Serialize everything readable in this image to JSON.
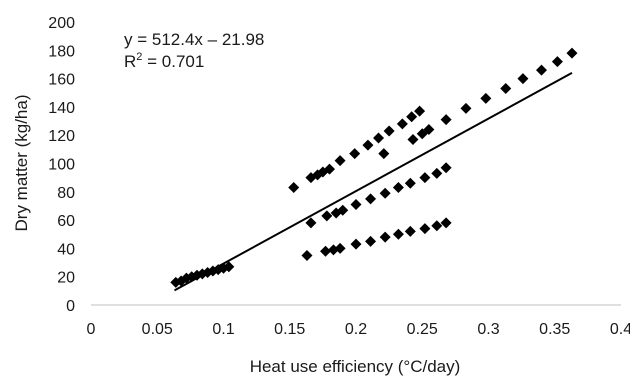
{
  "chart_data": {
    "type": "scatter",
    "title": "",
    "xlabel": "Heat use efficiency (°C/day)",
    "ylabel": "Dry matter (kg/ha)",
    "xlim": [
      0,
      0.4
    ],
    "ylim": [
      0,
      200
    ],
    "xticks": [
      "0",
      "0.05",
      "0.1",
      "0.15",
      "0.2",
      "0.25",
      "0.3",
      "0.35",
      "0.4"
    ],
    "yticks": [
      "0",
      "20",
      "40",
      "60",
      "80",
      "100",
      "120",
      "140",
      "160",
      "180",
      "200"
    ],
    "grid": false,
    "marker": "diamond",
    "marker_color": "#000000",
    "trendline": {
      "slope": 512.4,
      "intercept": -21.98,
      "x_range": [
        0.063,
        0.363
      ],
      "equation_label": "y = 512.4x – 21.98",
      "r2_prefix": "R",
      "r2_sup": "2",
      "r2_value": " = 0.701"
    },
    "points": [
      {
        "x": 0.064,
        "y": 16
      },
      {
        "x": 0.068,
        "y": 17
      },
      {
        "x": 0.072,
        "y": 19
      },
      {
        "x": 0.076,
        "y": 20
      },
      {
        "x": 0.08,
        "y": 21
      },
      {
        "x": 0.084,
        "y": 22
      },
      {
        "x": 0.088,
        "y": 23
      },
      {
        "x": 0.092,
        "y": 24
      },
      {
        "x": 0.096,
        "y": 25
      },
      {
        "x": 0.1,
        "y": 26
      },
      {
        "x": 0.104,
        "y": 27
      },
      {
        "x": 0.163,
        "y": 35
      },
      {
        "x": 0.177,
        "y": 38
      },
      {
        "x": 0.183,
        "y": 39
      },
      {
        "x": 0.188,
        "y": 40
      },
      {
        "x": 0.2,
        "y": 43
      },
      {
        "x": 0.211,
        "y": 45
      },
      {
        "x": 0.222,
        "y": 48
      },
      {
        "x": 0.232,
        "y": 50
      },
      {
        "x": 0.241,
        "y": 52
      },
      {
        "x": 0.252,
        "y": 54
      },
      {
        "x": 0.261,
        "y": 56
      },
      {
        "x": 0.268,
        "y": 58
      },
      {
        "x": 0.166,
        "y": 58
      },
      {
        "x": 0.178,
        "y": 63
      },
      {
        "x": 0.185,
        "y": 65
      },
      {
        "x": 0.19,
        "y": 67
      },
      {
        "x": 0.2,
        "y": 71
      },
      {
        "x": 0.211,
        "y": 75
      },
      {
        "x": 0.222,
        "y": 79
      },
      {
        "x": 0.232,
        "y": 83
      },
      {
        "x": 0.241,
        "y": 86
      },
      {
        "x": 0.252,
        "y": 90
      },
      {
        "x": 0.261,
        "y": 93
      },
      {
        "x": 0.268,
        "y": 97
      },
      {
        "x": 0.153,
        "y": 83
      },
      {
        "x": 0.166,
        "y": 90
      },
      {
        "x": 0.171,
        "y": 92
      },
      {
        "x": 0.175,
        "y": 94
      },
      {
        "x": 0.18,
        "y": 96
      },
      {
        "x": 0.188,
        "y": 102
      },
      {
        "x": 0.199,
        "y": 107
      },
      {
        "x": 0.209,
        "y": 113
      },
      {
        "x": 0.217,
        "y": 118
      },
      {
        "x": 0.225,
        "y": 123
      },
      {
        "x": 0.235,
        "y": 128
      },
      {
        "x": 0.242,
        "y": 133
      },
      {
        "x": 0.248,
        "y": 137
      },
      {
        "x": 0.221,
        "y": 107
      },
      {
        "x": 0.243,
        "y": 117
      },
      {
        "x": 0.25,
        "y": 121
      },
      {
        "x": 0.255,
        "y": 124
      },
      {
        "x": 0.268,
        "y": 131
      },
      {
        "x": 0.283,
        "y": 139
      },
      {
        "x": 0.298,
        "y": 146
      },
      {
        "x": 0.313,
        "y": 153
      },
      {
        "x": 0.326,
        "y": 160
      },
      {
        "x": 0.34,
        "y": 166
      },
      {
        "x": 0.352,
        "y": 172
      },
      {
        "x": 0.363,
        "y": 178
      }
    ]
  }
}
